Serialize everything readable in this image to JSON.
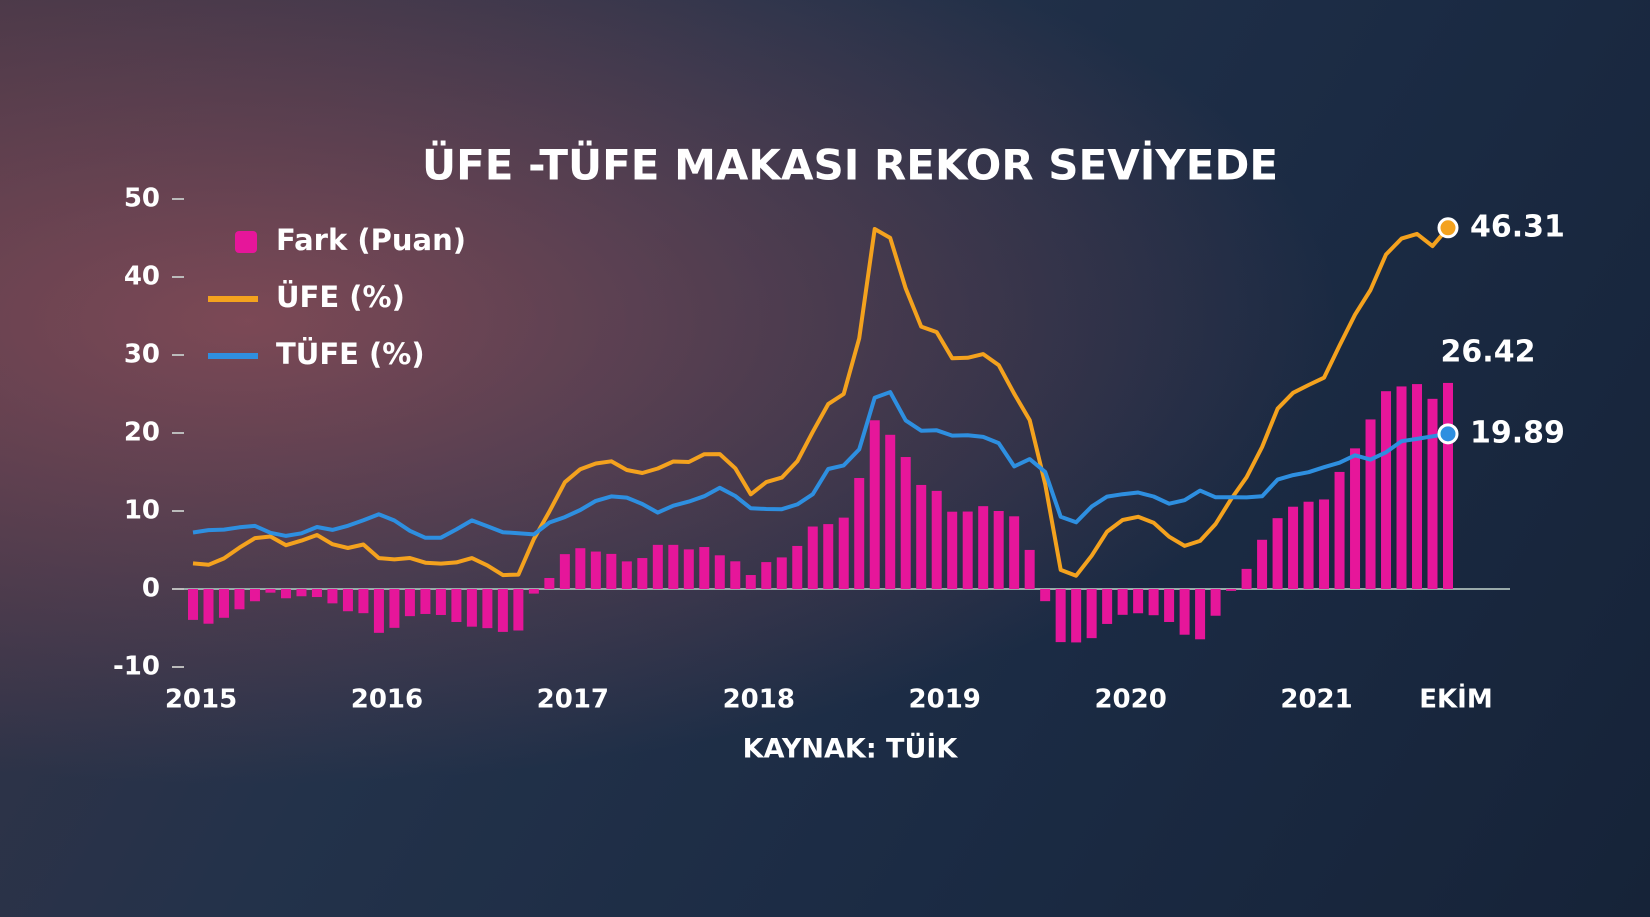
{
  "chart_data": {
    "type": "bar",
    "title": "ÜFE -TÜFE MAKASI REKOR SEVİYEDE",
    "source": "KAYNAK: TÜİK",
    "categories": [
      "2015",
      null,
      null,
      null,
      null,
      null,
      null,
      null,
      null,
      null,
      null,
      null,
      "2016",
      null,
      null,
      null,
      null,
      null,
      null,
      null,
      null,
      null,
      null,
      null,
      "2017",
      null,
      null,
      null,
      null,
      null,
      null,
      null,
      null,
      null,
      null,
      null,
      "2018",
      null,
      null,
      null,
      null,
      null,
      null,
      null,
      null,
      null,
      null,
      null,
      "2019",
      null,
      null,
      null,
      null,
      null,
      null,
      null,
      null,
      null,
      null,
      null,
      "2020",
      null,
      null,
      null,
      null,
      null,
      null,
      null,
      null,
      null,
      null,
      null,
      "2021",
      null,
      null,
      null,
      null,
      null,
      null,
      null,
      null,
      "EKİM"
    ],
    "series": [
      {
        "name": "Fark (Puan)",
        "type": "bar",
        "color": "#e6169a",
        "values": [
          -3.96,
          -4.45,
          -3.69,
          -2.6,
          -1.57,
          -0.47,
          -1.19,
          -0.93,
          -1.03,
          -1.84,
          -2.85,
          -3.1,
          -5.62,
          -4.98,
          -3.48,
          -3.2,
          -3.33,
          -4.23,
          -4.83,
          -5.02,
          -5.5,
          -5.32,
          -0.59,
          1.41,
          4.47,
          5.23,
          4.8,
          4.5,
          3.54,
          3.97,
          5.66,
          5.66,
          5.08,
          5.38,
          4.32,
          3.55,
          1.79,
          3.45,
          4.05,
          5.52,
          8.01,
          8.32,
          9.15,
          14.23,
          21.63,
          19.77,
          16.92,
          13.34,
          12.58,
          9.91,
          9.93,
          10.62,
          10,
          9.32,
          5.01,
          -1.56,
          -6.81,
          -6.85,
          -6.3,
          -4.48,
          -3.31,
          -3.11,
          -3.36,
          -4.23,
          -5.86,
          -6.45,
          -3.43,
          -0.24,
          2.58,
          6.31,
          9.08,
          10.55,
          11.19,
          11.48,
          15.01,
          18.03,
          21.74,
          25.36,
          25.97,
          26.27,
          24.38,
          26.42
        ]
      },
      {
        "name": "ÜFE (%)",
        "type": "line",
        "color": "#f4a21e",
        "values": [
          3.28,
          3.1,
          3.92,
          5.31,
          6.52,
          6.73,
          5.62,
          6.21,
          6.92,
          5.74,
          5.25,
          5.71,
          3.96,
          3.8,
          3.98,
          3.37,
          3.25,
          3.41,
          3.96,
          3.03,
          1.78,
          1.84,
          6.41,
          9.94,
          13.69,
          15.36,
          16.09,
          16.37,
          15.26,
          14.87,
          15.45,
          16.34,
          16.28,
          17.28,
          17.3,
          15.47,
          12.14,
          13.71,
          14.28,
          16.37,
          20.16,
          23.71,
          25,
          32.13,
          46.15,
          45.01,
          38.54,
          33.64,
          32.93,
          29.58,
          29.64,
          30.12,
          28.71,
          25.04,
          21.66,
          13.45,
          2.45,
          1.7,
          4.26,
          7.36,
          8.84,
          9.26,
          8.5,
          6.71,
          5.53,
          6.17,
          8.33,
          11.53,
          14.33,
          18.2,
          23.11,
          25.15,
          26.16,
          27.09,
          31.2,
          35.17,
          38.33,
          42.89,
          44.92,
          45.52,
          43.96,
          46.31
        ]
      },
      {
        "name": "TÜFE (%)",
        "type": "line",
        "color": "#2e8fe0",
        "values": [
          7.24,
          7.55,
          7.61,
          7.91,
          8.09,
          7.2,
          6.81,
          7.14,
          7.95,
          7.58,
          8.1,
          8.81,
          9.58,
          8.78,
          7.46,
          6.57,
          6.58,
          7.64,
          8.79,
          8.05,
          7.28,
          7.16,
          7,
          8.53,
          9.22,
          10.13,
          11.29,
          11.87,
          11.72,
          10.9,
          9.79,
          10.68,
          11.2,
          11.9,
          12.98,
          11.92,
          10.35,
          10.26,
          10.23,
          10.85,
          12.15,
          15.39,
          15.85,
          17.9,
          24.52,
          25.24,
          21.62,
          20.3,
          20.35,
          19.67,
          19.71,
          19.5,
          18.71,
          15.72,
          16.65,
          15.01,
          9.26,
          8.55,
          10.56,
          11.84,
          12.15,
          12.37,
          11.86,
          10.94,
          11.39,
          12.62,
          11.76,
          11.77,
          11.75,
          11.89,
          14.03,
          14.6,
          14.97,
          15.61,
          16.19,
          17.14,
          16.59,
          17.53,
          18.95,
          19.25,
          19.58,
          19.89
        ]
      }
    ],
    "ylim": [
      -10,
      50
    ],
    "yticks": [
      -10,
      0,
      10,
      20,
      30,
      40,
      50
    ],
    "grid": false,
    "legend": "top-left"
  }
}
